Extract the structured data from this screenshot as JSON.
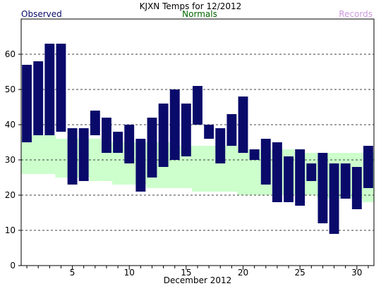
{
  "chart_data": {
    "type": "bar",
    "title": "KJXN Temps for 12/2012",
    "legend": {
      "observed": "Observed",
      "normals": "Normals",
      "records": "Records",
      "placement": "top"
    },
    "xlabel": "December 2012",
    "ylabel": "",
    "xlim": [
      0.5,
      31.5
    ],
    "ylim": [
      0,
      70
    ],
    "x_ticks": [
      5,
      10,
      15,
      20,
      25,
      30
    ],
    "y_ticks": [
      0,
      10,
      20,
      30,
      40,
      50,
      60
    ],
    "grid": "dashed horizontal",
    "days": [
      1,
      2,
      3,
      4,
      5,
      6,
      7,
      8,
      9,
      10,
      11,
      12,
      13,
      14,
      15,
      16,
      17,
      18,
      19,
      20,
      21,
      22,
      23,
      24,
      25,
      26,
      27,
      28,
      29,
      30,
      31
    ],
    "observed_high": [
      57,
      58,
      63,
      63,
      39,
      39,
      44,
      42,
      38,
      40,
      36,
      42,
      46,
      50,
      46,
      51,
      40,
      39,
      43,
      48,
      33,
      36,
      35,
      31,
      33,
      29,
      32,
      29,
      29,
      28,
      34
    ],
    "observed_low": [
      35,
      37,
      37,
      38,
      23,
      24,
      37,
      32,
      32,
      29,
      21,
      25,
      28,
      30,
      31,
      40,
      36,
      29,
      34,
      32,
      30,
      23,
      18,
      18,
      17,
      24,
      12,
      9,
      19,
      16,
      22
    ],
    "normal_high": [
      37,
      37,
      37,
      36,
      36,
      36,
      36,
      35,
      35,
      35,
      35,
      35,
      35,
      34,
      34,
      34,
      34,
      34,
      34,
      33,
      33,
      33,
      33,
      33,
      32,
      32,
      32,
      32,
      32,
      32,
      32
    ],
    "normal_low": [
      26,
      26,
      26,
      25,
      25,
      25,
      24,
      24,
      23,
      23,
      23,
      22,
      22,
      22,
      22,
      21,
      21,
      21,
      21,
      20,
      20,
      20,
      20,
      20,
      20,
      20,
      19,
      19,
      19,
      19,
      18
    ],
    "colors": {
      "observed": "#0a0a6b",
      "normals_fill": "#ccffcc",
      "normals_text": "#006600",
      "records_text": "#cc99dd",
      "grid": "#000000",
      "axis": "#000000"
    }
  }
}
